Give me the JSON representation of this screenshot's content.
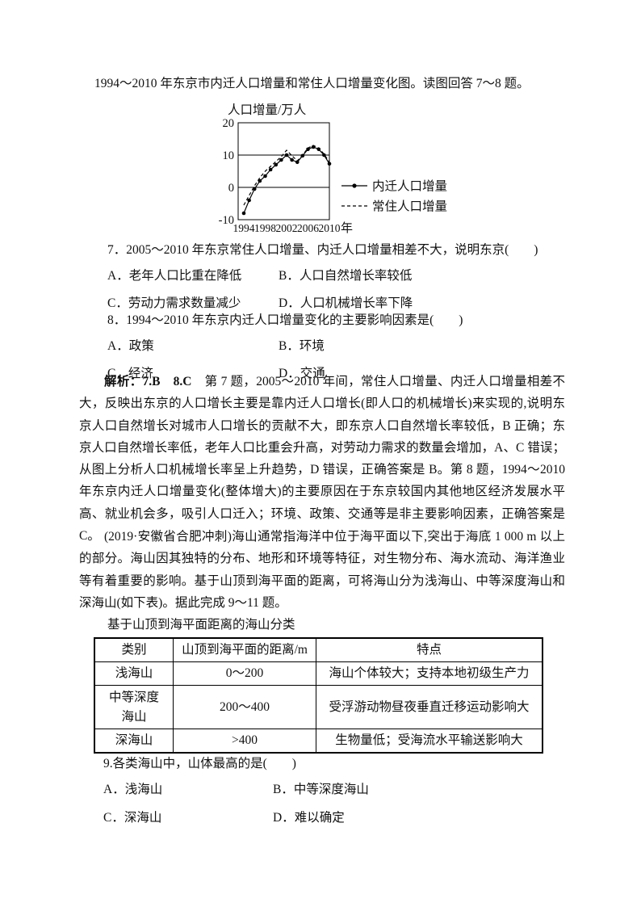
{
  "intro1": "1994～2010 年东京市内迁人口增量和常住人口增量变化图。读图回答 7～8 题。",
  "chart_data": {
    "type": "line",
    "title": "人口增量/万人",
    "x": [
      1994,
      1995,
      1996,
      1997,
      1998,
      1999,
      2000,
      2001,
      2002,
      2003,
      2004,
      2005,
      2006,
      2007,
      2008,
      2009,
      2010
    ],
    "x_ticks": [
      1994,
      1998,
      2002,
      2006,
      2010
    ],
    "x_unit": "年",
    "ylim": [
      -10,
      20
    ],
    "y_ticks": [
      20,
      10,
      0,
      -10
    ],
    "gridlines": [
      10,
      0
    ],
    "legend_position": "right",
    "series": [
      {
        "name": "内迁人口增量",
        "style": "solid-dot",
        "values": [
          -8,
          -4,
          -0.5,
          2,
          3.5,
          5.5,
          7,
          8.5,
          10,
          8.5,
          7.8,
          9.8,
          11.8,
          12.5,
          11.8,
          10,
          7.3
        ]
      },
      {
        "name": "常住人口增量",
        "style": "dashed",
        "values": [
          -5.5,
          -2.5,
          0.5,
          3,
          5,
          6.5,
          8,
          9.5,
          11.5,
          9.8,
          8.2,
          10,
          12.2,
          13,
          12.2,
          10.3,
          7.8
        ]
      }
    ]
  },
  "questions": {
    "q7": {
      "stem": "7．2005～2010 年东京常住人口增量、内迁人口增量相差不大，说明东京(　　)",
      "options": [
        "A．老年人口比重在降低",
        "B．人口自然增长率较低",
        "C．劳动力需求数量减少",
        "D．人口机械增长率下降"
      ]
    },
    "q8": {
      "stem": "8．1994～2010 年东京内迁人口增量变化的主要影响因素是(　　)",
      "options": [
        "A．政策",
        "B．环境",
        "C．经济",
        "D．交通"
      ]
    },
    "q9": {
      "stem": "9.各类海山中，山体最高的是(　　)",
      "options": [
        "A．浅海山",
        "B．中等深度海山",
        "C．深海山",
        "D．难以确定"
      ]
    }
  },
  "analysis": {
    "prefix": "解析：7.B　8.C",
    "body": "　第 7 题，2005～2010 年间，常住人口增量、内迁人口增量相差不大，反映出东京的人口增长主要是靠内迁人口增长(即人口的机械增长)来实现的,说明东京人口自然增长对城市人口增长的贡献不大，即东京人口自然增长率较低，B 正确；东京人口自然增长率低，老年人口比重会升高，对劳动力需求的数量会增加，A、C 错误；从图上分析人口机械增长率呈上升趋势，D 错误，正确答案是 B。第 8 题，1994～2010 年东京内迁人口增量变化(整体增大)的主要原因在于东京较国内其他地区经济发展水平高、就业机会多，吸引人口迁入；环境、政策、交通等是非主要影响因素，正确答案是 C。"
  },
  "passage2": "(2019·安徽省合肥冲刺)海山通常指海洋中位于海平面以下,突出于海底 1 000 m 以上的部分。海山因其独特的分布、地形和环境等特征，对生物分布、海水流动、海洋渔业等有着重要的影响。基于山顶到海平面的距离，可将海山分为浅海山、中等深度海山和深海山(如下表)。据此完成 9～11 题。",
  "table": {
    "title": "基于山顶到海平面距离的海山分类",
    "headers": [
      "类别",
      "山顶到海平面的距离/m",
      "特点"
    ],
    "rows": [
      [
        "浅海山",
        "0～200",
        "海山个体较大；支持本地初级生产力"
      ],
      [
        "中等深度海山",
        "200～400",
        "受浮游动物昼夜垂直迁移运动影响大"
      ],
      [
        "深海山",
        ">400",
        "生物量低；受海流水平输送影响大"
      ]
    ]
  }
}
